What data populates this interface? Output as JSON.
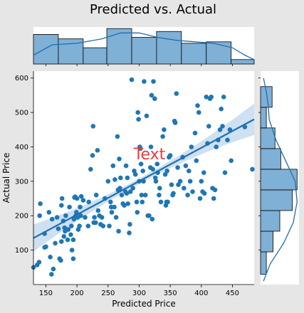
{
  "chart_data": {
    "type": "scatter",
    "title": "Predicted vs. Actual",
    "xlabel": "Predicted Price",
    "ylabel": "Actual Price",
    "annotation": "Text",
    "xlim": [
      130,
      485
    ],
    "ylim": [
      0,
      620
    ],
    "xticks": [
      150,
      200,
      250,
      300,
      350,
      400,
      450
    ],
    "yticks": [
      100,
      200,
      300,
      400,
      500,
      600
    ],
    "regression": {
      "x": [
        130,
        485
      ],
      "y": [
        135,
        480
      ]
    },
    "colors": {
      "point": "#1f77b4",
      "bar_fill": "#7fb0d6",
      "band": "#c6dbef",
      "line": "#1f6fae"
    },
    "marginal_x": {
      "bin_edges": [
        130,
        170,
        210,
        248,
        288,
        328,
        368,
        408,
        448,
        485
      ],
      "counts": [
        20,
        17,
        11,
        24,
        18,
        22,
        14,
        15,
        3
      ],
      "kde": [
        [
          130,
          6
        ],
        [
          160,
          13
        ],
        [
          200,
          14
        ],
        [
          240,
          17
        ],
        [
          270,
          21
        ],
        [
          300,
          21
        ],
        [
          330,
          18
        ],
        [
          360,
          16
        ],
        [
          390,
          15
        ],
        [
          420,
          14
        ],
        [
          450,
          11
        ],
        [
          470,
          6
        ],
        [
          485,
          3
        ]
      ]
    },
    "marginal_y": {
      "bin_edges": [
        30,
        95,
        155,
        215,
        275,
        335,
        395,
        455,
        515,
        575
      ],
      "counts": [
        6,
        13,
        20,
        33,
        38,
        21,
        15,
        6,
        12
      ],
      "kde": [
        [
          10,
          3
        ],
        [
          60,
          10
        ],
        [
          120,
          24
        ],
        [
          180,
          34
        ],
        [
          240,
          38
        ],
        [
          300,
          36
        ],
        [
          360,
          26
        ],
        [
          420,
          16
        ],
        [
          480,
          9
        ],
        [
          520,
          8
        ],
        [
          560,
          6
        ],
        [
          600,
          3
        ]
      ]
    },
    "points": [
      [
        130,
        50
      ],
      [
        136,
        57
      ],
      [
        139,
        65
      ],
      [
        148,
        148
      ],
      [
        140,
        200
      ],
      [
        141,
        235
      ],
      [
        150,
        110
      ],
      [
        148,
        108
      ],
      [
        155,
        210
      ],
      [
        157,
        80
      ],
      [
        159,
        30
      ],
      [
        160,
        190
      ],
      [
        162,
        45
      ],
      [
        165,
        120
      ],
      [
        168,
        195
      ],
      [
        170,
        162
      ],
      [
        172,
        75
      ],
      [
        174,
        70
      ],
      [
        175,
        230
      ],
      [
        175,
        125
      ],
      [
        176,
        250
      ],
      [
        178,
        185
      ],
      [
        179,
        140
      ],
      [
        180,
        165
      ],
      [
        181,
        155
      ],
      [
        182,
        200
      ],
      [
        184,
        160
      ],
      [
        185,
        130
      ],
      [
        186,
        160
      ],
      [
        188,
        225
      ],
      [
        190,
        145
      ],
      [
        191,
        170
      ],
      [
        192,
        100
      ],
      [
        194,
        130
      ],
      [
        194,
        75
      ],
      [
        195,
        190
      ],
      [
        196,
        253
      ],
      [
        197,
        255
      ],
      [
        198,
        200
      ],
      [
        199,
        210
      ],
      [
        200,
        250
      ],
      [
        201,
        195
      ],
      [
        202,
        160
      ],
      [
        204,
        170
      ],
      [
        205,
        225
      ],
      [
        206,
        200
      ],
      [
        207,
        256
      ],
      [
        210,
        245
      ],
      [
        213,
        195
      ],
      [
        218,
        170
      ],
      [
        219,
        240
      ],
      [
        222,
        335
      ],
      [
        225,
        375
      ],
      [
        226,
        460
      ],
      [
        227,
        180
      ],
      [
        228,
        195
      ],
      [
        230,
        180
      ],
      [
        231,
        260
      ],
      [
        233,
        390
      ],
      [
        234,
        215
      ],
      [
        236,
        200
      ],
      [
        238,
        175
      ],
      [
        240,
        195
      ],
      [
        242,
        170
      ],
      [
        245,
        250
      ],
      [
        250,
        300
      ],
      [
        252,
        170
      ],
      [
        254,
        240
      ],
      [
        255,
        225
      ],
      [
        256,
        210
      ],
      [
        258,
        345
      ],
      [
        260,
        225
      ],
      [
        261,
        305
      ],
      [
        263,
        195
      ],
      [
        265,
        430
      ],
      [
        266,
        275
      ],
      [
        267,
        155
      ],
      [
        268,
        365
      ],
      [
        269,
        280
      ],
      [
        270,
        310
      ],
      [
        272,
        260
      ],
      [
        274,
        235
      ],
      [
        276,
        230
      ],
      [
        278,
        270
      ],
      [
        279,
        345
      ],
      [
        280,
        265
      ],
      [
        281,
        310
      ],
      [
        282,
        235
      ],
      [
        284,
        150
      ],
      [
        285,
        175
      ],
      [
        286,
        270
      ],
      [
        288,
        595
      ],
      [
        290,
        280
      ],
      [
        292,
        330
      ],
      [
        294,
        320
      ],
      [
        296,
        240
      ],
      [
        297,
        210
      ],
      [
        298,
        500
      ],
      [
        299,
        480
      ],
      [
        300,
        300
      ],
      [
        301,
        400
      ],
      [
        302,
        395
      ],
      [
        303,
        350
      ],
      [
        304,
        260
      ],
      [
        305,
        240
      ],
      [
        306,
        330
      ],
      [
        307,
        300
      ],
      [
        308,
        590
      ],
      [
        310,
        260
      ],
      [
        312,
        490
      ],
      [
        314,
        200
      ],
      [
        316,
        200
      ],
      [
        318,
        340
      ],
      [
        319,
        400
      ],
      [
        320,
        550
      ],
      [
        321,
        190
      ],
      [
        322,
        335
      ],
      [
        323,
        590
      ],
      [
        325,
        540
      ],
      [
        326,
        310
      ],
      [
        327,
        300
      ],
      [
        329,
        350
      ],
      [
        330,
        325
      ],
      [
        332,
        260
      ],
      [
        333,
        280
      ],
      [
        335,
        240
      ],
      [
        338,
        430
      ],
      [
        340,
        450
      ],
      [
        342,
        320
      ],
      [
        343,
        230
      ],
      [
        344,
        240
      ],
      [
        345,
        330
      ],
      [
        346,
        240
      ],
      [
        348,
        370
      ],
      [
        350,
        375
      ],
      [
        352,
        290
      ],
      [
        354,
        260
      ],
      [
        355,
        265
      ],
      [
        357,
        475
      ],
      [
        358,
        470
      ],
      [
        360,
        555
      ],
      [
        362,
        340
      ],
      [
        363,
        290
      ],
      [
        366,
        300
      ],
      [
        370,
        370
      ],
      [
        372,
        280
      ],
      [
        375,
        345
      ],
      [
        378,
        260
      ],
      [
        380,
        330
      ],
      [
        382,
        300
      ],
      [
        384,
        400
      ],
      [
        386,
        270
      ],
      [
        390,
        440
      ],
      [
        392,
        360
      ],
      [
        394,
        520
      ],
      [
        396,
        500
      ],
      [
        398,
        250
      ],
      [
        400,
        300
      ],
      [
        402,
        270
      ],
      [
        404,
        325
      ],
      [
        405,
        265
      ],
      [
        408,
        545
      ],
      [
        410,
        410
      ],
      [
        412,
        460
      ],
      [
        414,
        540
      ],
      [
        416,
        545
      ],
      [
        418,
        280
      ],
      [
        420,
        250
      ],
      [
        422,
        275
      ],
      [
        424,
        400
      ],
      [
        427,
        420
      ],
      [
        430,
        450
      ],
      [
        432,
        510
      ],
      [
        434,
        460
      ],
      [
        436,
        545
      ],
      [
        438,
        325
      ],
      [
        442,
        420
      ],
      [
        446,
        450
      ],
      [
        448,
        360
      ],
      [
        470,
        458
      ],
      [
        482,
        335
      ]
    ]
  }
}
